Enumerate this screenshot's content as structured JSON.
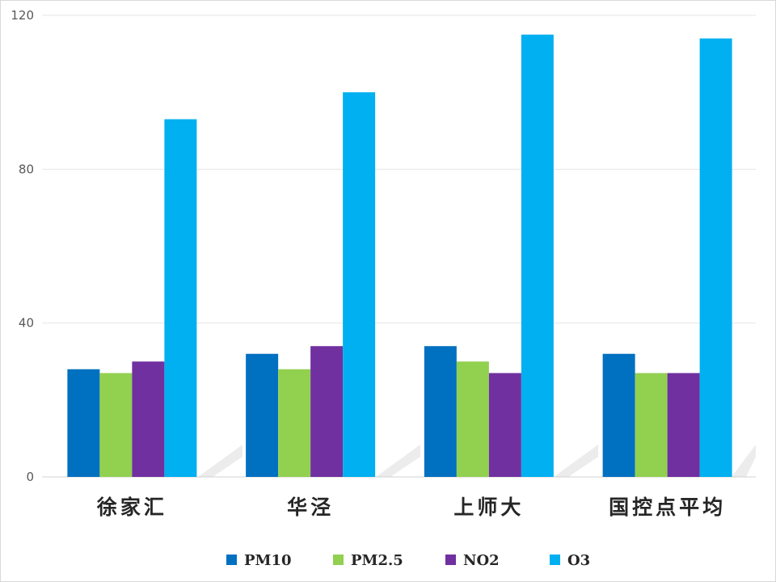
{
  "chart_data": {
    "type": "bar",
    "categories": [
      "徐家汇",
      "华泾",
      "上师大",
      "国控点平均"
    ],
    "series": [
      {
        "name": "PM10",
        "color": "#0070c0",
        "values": [
          28,
          32,
          34,
          32
        ]
      },
      {
        "name": "PM2.5",
        "color": "#92d050",
        "values": [
          27,
          28,
          30,
          27
        ]
      },
      {
        "name": "NO2",
        "color": "#7030a0",
        "values": [
          30,
          34,
          27,
          27
        ]
      },
      {
        "name": "O3",
        "color": "#00b0f0",
        "values": [
          93,
          100,
          115,
          114
        ]
      }
    ],
    "yticks": [
      "0",
      "40",
      "80",
      "120"
    ],
    "ylim": [
      0,
      120
    ],
    "grid": true,
    "legend": "bottom",
    "title": "",
    "xlabel": "",
    "ylabel": ""
  }
}
